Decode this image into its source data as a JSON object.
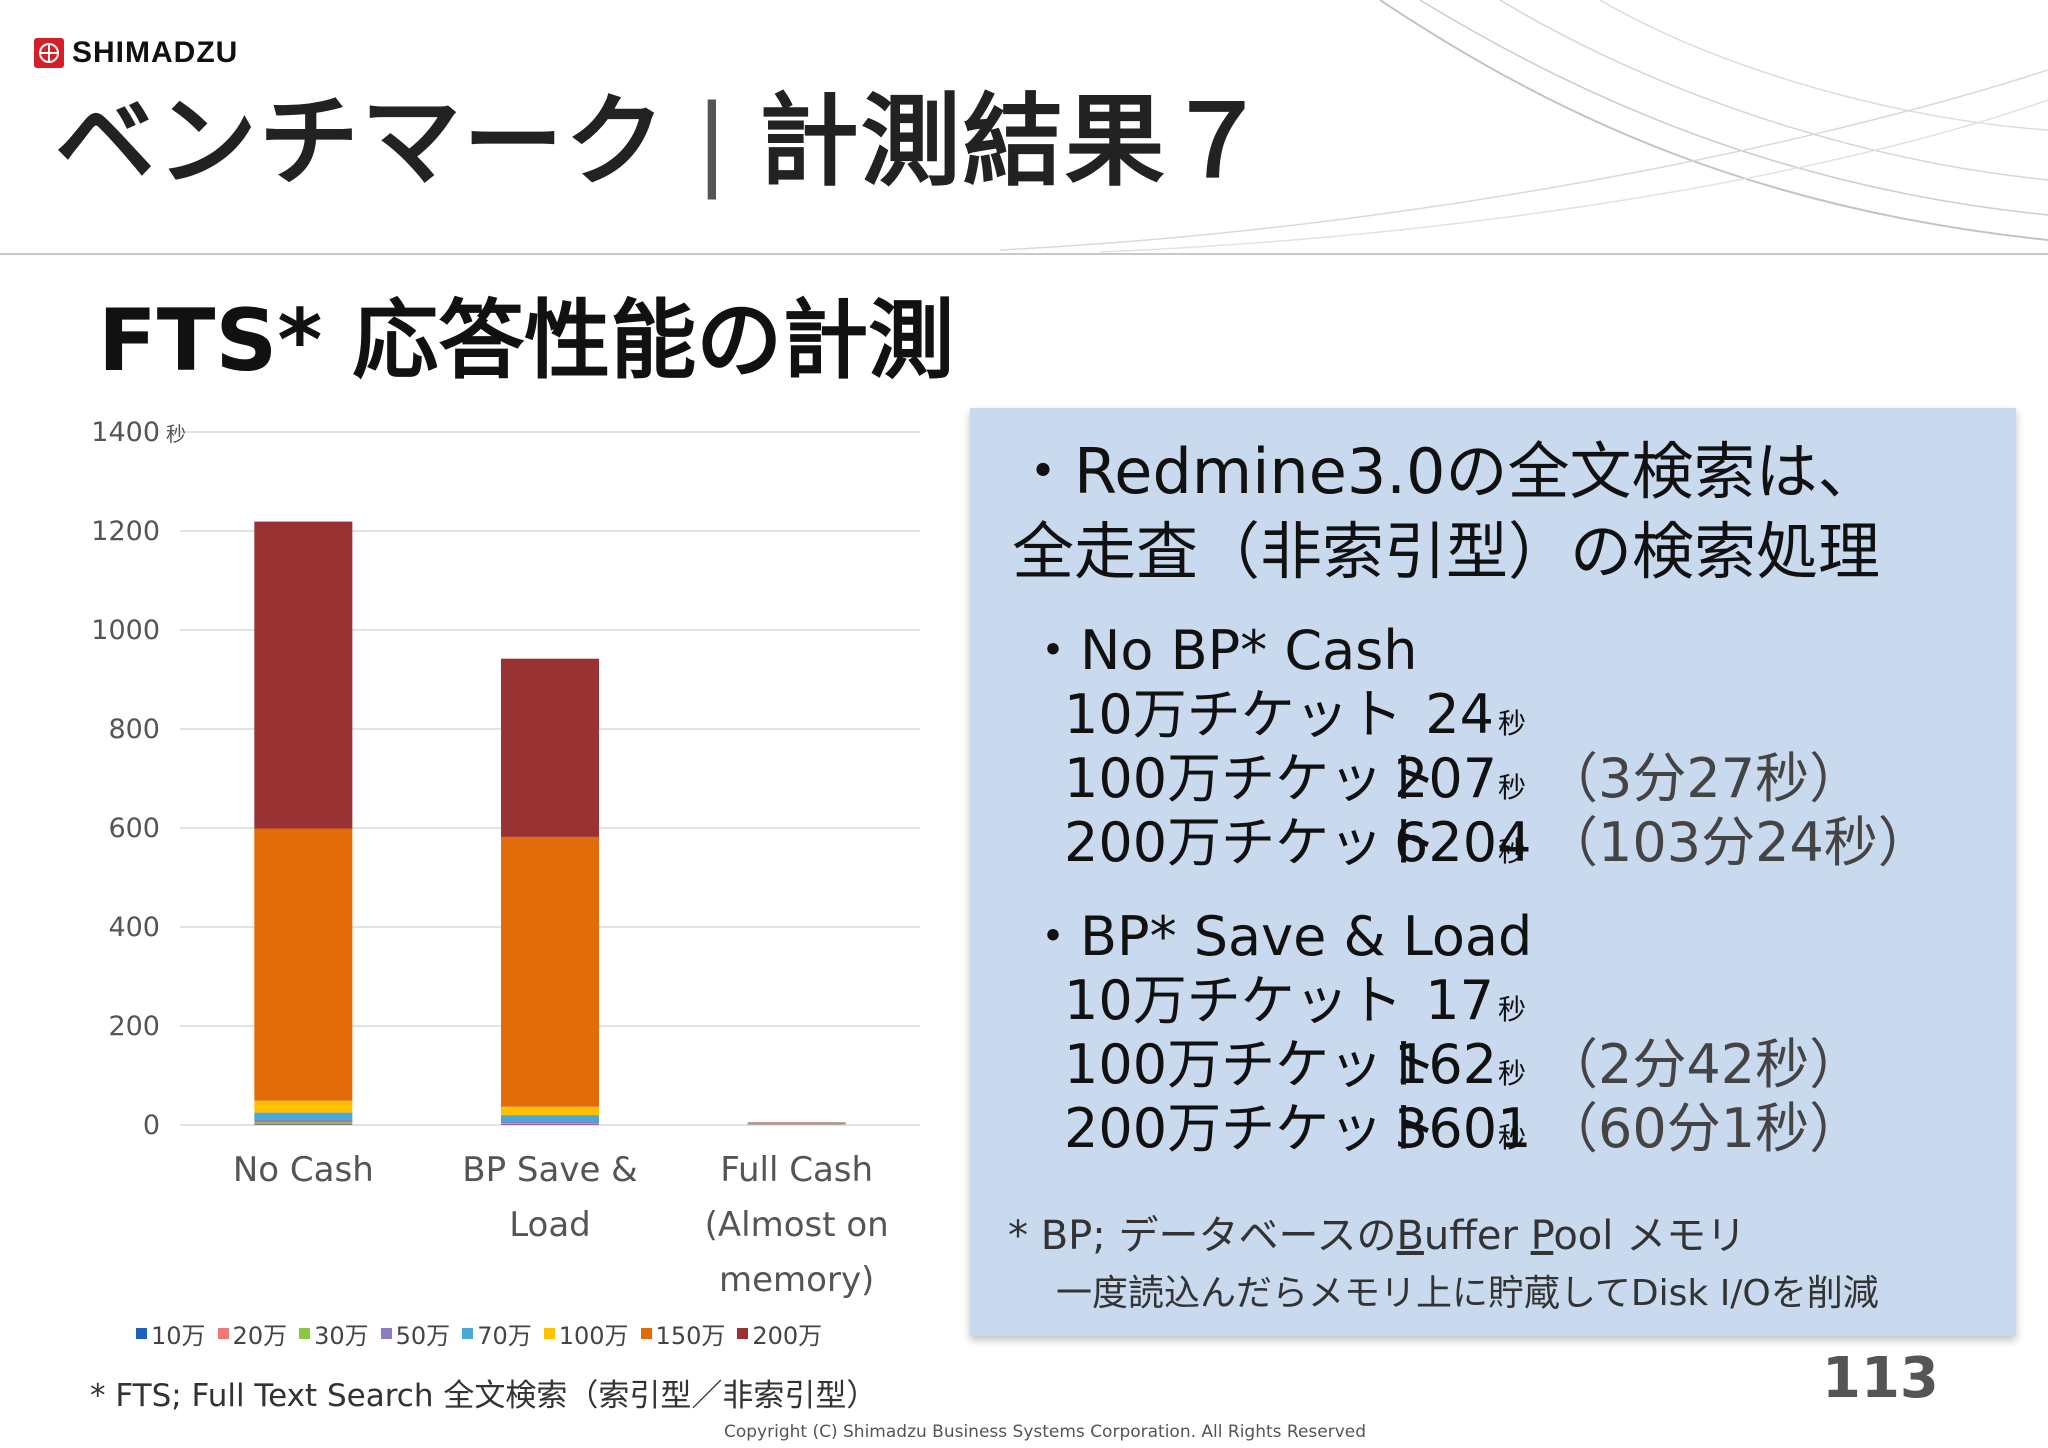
{
  "brand": {
    "name": "SHIMADZU"
  },
  "header": {
    "title": "ベンチマーク",
    "separator": "|",
    "title_suffix": "計測結果７"
  },
  "subtitle": "FTS* 応答性能の計測",
  "chart_data": {
    "type": "bar",
    "stacked": true,
    "title": "",
    "xlabel": "",
    "ylabel": "",
    "y_unit": "秒",
    "ylim": [
      0,
      1400
    ],
    "yticks": [
      0,
      200,
      400,
      600,
      800,
      1000,
      1200,
      1400
    ],
    "grid": true,
    "legend_position": "bottom",
    "categories": [
      [
        "No Cash"
      ],
      [
        "BP Save &",
        "Load"
      ],
      [
        "Full Cash",
        "(Almost on",
        "memory)"
      ]
    ],
    "series": [
      {
        "name": "10万",
        "color": "#1f5fbf",
        "values": [
          1,
          1,
          0.2
        ]
      },
      {
        "name": "20万",
        "color": "#f07878",
        "values": [
          2,
          1,
          0.3
        ]
      },
      {
        "name": "30万",
        "color": "#8dc63f",
        "values": [
          3,
          2,
          0.3
        ]
      },
      {
        "name": "50万",
        "color": "#8e7cc3",
        "values": [
          5,
          4,
          0.4
        ]
      },
      {
        "name": "70万",
        "color": "#4aa8d8",
        "values": [
          14,
          12,
          0.5
        ]
      },
      {
        "name": "100万",
        "color": "#ffc000",
        "values": [
          24,
          17,
          0.8
        ]
      },
      {
        "name": "150万",
        "color": "#e36c0a",
        "values": [
          550,
          545,
          1
        ]
      },
      {
        "name": "200万",
        "color": "#993333",
        "values": [
          620,
          360,
          1.5
        ]
      }
    ]
  },
  "footnote": "* FTS; Full Text Search 全文検索（索引型／非索引型）",
  "panel": {
    "heading_line1": "・Redmine3.0の全文検索は、",
    "heading_line2": "全走査（非索引型）の検索処理",
    "sections": [
      {
        "title": "・No BP* Cash",
        "rows": [
          {
            "label": "10万チケット",
            "value": "24",
            "unit": "秒",
            "paren": ""
          },
          {
            "label": "100万チケット",
            "value": "207",
            "unit": "秒",
            "paren": "（3分27秒）"
          },
          {
            "label": "200万チケット",
            "value": "6204",
            "unit": "秒",
            "paren": "（103分24秒）"
          }
        ]
      },
      {
        "title": "・BP* Save & Load",
        "rows": [
          {
            "label": "10万チケット",
            "value": "17",
            "unit": "秒",
            "paren": ""
          },
          {
            "label": "100万チケット",
            "value": "162",
            "unit": "秒",
            "paren": "（2分42秒）"
          },
          {
            "label": "200万チケット",
            "value": "3601",
            "unit": "秒",
            "paren": "（60分1秒）"
          }
        ]
      }
    ],
    "note_line1_pre": "* BP; データベースの",
    "note_line1_b": "B",
    "note_line1_mid": "uffer ",
    "note_line1_p": "P",
    "note_line1_post": "ool メモリ",
    "note_line2": "一度読込んだらメモリ上に貯蔵してDisk I/Oを削減"
  },
  "page_number": "113",
  "copyright": "Copyright (C) Shimadzu Business Systems Corporation. All Rights Reserved"
}
